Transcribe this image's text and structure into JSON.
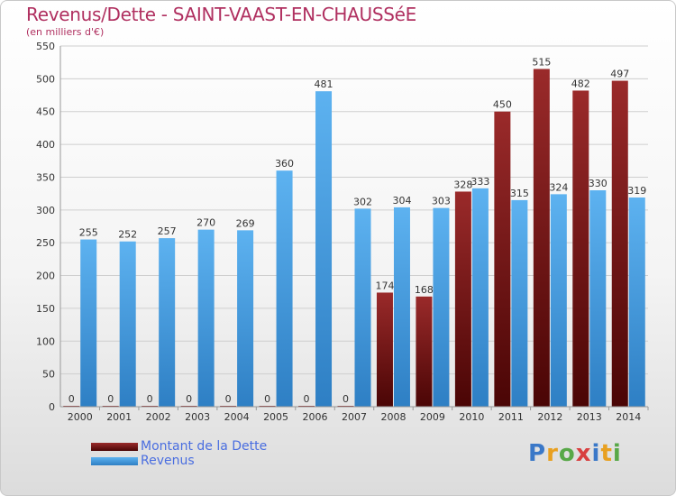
{
  "header": {
    "title": "Revenus/Dette - SAINT-VAAST-EN-CHAUSSéE",
    "subtitle": "(en milliers d'€)"
  },
  "brand": {
    "text": "Proxiti"
  },
  "colors": {
    "dette": "#7a1414",
    "revenus": "#4aa3e8",
    "grid": "#cfcfcf"
  },
  "chart_data": {
    "type": "bar",
    "categories": [
      "2000",
      "2001",
      "2002",
      "2003",
      "2004",
      "2005",
      "2006",
      "2007",
      "2008",
      "2009",
      "2010",
      "2011",
      "2012",
      "2013",
      "2014"
    ],
    "series": [
      {
        "name": "Montant de la Dette",
        "values": [
          0,
          0,
          0,
          0,
          0,
          0,
          0,
          0,
          174,
          168,
          328,
          450,
          515,
          482,
          497
        ]
      },
      {
        "name": "Revenus",
        "values": [
          255,
          252,
          257,
          270,
          269,
          360,
          481,
          302,
          304,
          303,
          333,
          315,
          324,
          330,
          319
        ]
      }
    ],
    "ylim": [
      0,
      550
    ],
    "yticks": [
      0,
      50,
      100,
      150,
      200,
      250,
      300,
      350,
      400,
      450,
      500,
      550
    ],
    "grid": true,
    "legend": "bottom-left"
  }
}
